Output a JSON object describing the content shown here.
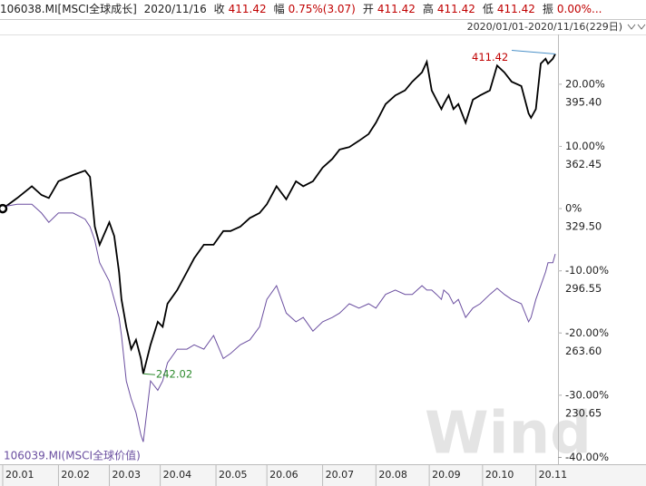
{
  "header": {
    "date": "2020/11/16",
    "fields": [
      {
        "label": "收",
        "value": "411.42"
      },
      {
        "label": "幅",
        "value": "0.75%(3.07)"
      },
      {
        "label": "开",
        "value": "411.42"
      },
      {
        "label": "高",
        "value": "411.42"
      },
      {
        "label": "低",
        "value": "411.42"
      },
      {
        "label": "振",
        "value": "0.00%..."
      }
    ],
    "range": "2020/01/01-2020/11/16(229日)"
  },
  "watermark": "Wind",
  "chart_data": {
    "type": "line",
    "x": [
      0,
      6,
      12,
      16,
      19,
      23,
      29,
      34,
      36,
      38,
      40,
      44,
      46,
      48,
      49,
      51,
      53,
      55,
      57,
      58,
      61,
      64,
      66,
      68,
      72,
      76,
      79,
      83,
      87,
      91,
      94,
      98,
      102,
      106,
      109,
      113,
      117,
      121,
      124,
      128,
      132,
      136,
      139,
      143,
      147,
      151,
      154,
      158,
      162,
      166,
      169,
      173,
      175,
      177,
      179,
      181,
      182,
      184,
      186,
      188,
      191,
      194,
      197,
      201,
      204,
      207,
      210,
      214,
      217,
      218,
      220,
      222,
      224,
      225,
      227,
      228
    ],
    "series": [
      {
        "name": "106038.MI[MSCI全球成长]",
        "color": "#000000",
        "values": [
          0,
          1.7,
          3.6,
          2.2,
          1.7,
          4.4,
          5.4,
          6.1,
          5.1,
          -2.9,
          -5.8,
          -2.2,
          -4.4,
          -10.2,
          -14.6,
          -19.0,
          -22.6,
          -21.1,
          -24.1,
          -26.55,
          -21.9,
          -18.2,
          -19.0,
          -15.3,
          -13.1,
          -10.2,
          -8.0,
          -5.8,
          -5.8,
          -3.6,
          -3.6,
          -2.9,
          -1.5,
          -0.7,
          0.7,
          3.6,
          1.5,
          4.4,
          3.6,
          4.4,
          6.6,
          8.0,
          9.5,
          9.9,
          10.9,
          12.0,
          13.8,
          16.8,
          18.2,
          19.0,
          20.4,
          21.9,
          23.6,
          19.0,
          17.5,
          16.0,
          16.8,
          18.2,
          16.0,
          16.8,
          13.8,
          17.5,
          18.2,
          19.0,
          23.0,
          21.9,
          20.4,
          19.7,
          15.3,
          14.6,
          16.0,
          23.3,
          24.1,
          23.3,
          24.1,
          24.86
        ]
      },
      {
        "name": "106039.MI(MSCI全球价值)",
        "color": "#6b4fa0",
        "values": [
          0.3,
          0.7,
          0.7,
          -0.7,
          -2.2,
          -0.7,
          -0.7,
          -1.7,
          -2.9,
          -5.1,
          -8.7,
          -11.7,
          -14.6,
          -17.5,
          -20.4,
          -27.7,
          -30.6,
          -32.8,
          -36.4,
          -37.5,
          -27.7,
          -29.2,
          -27.7,
          -24.8,
          -22.6,
          -22.6,
          -21.9,
          -22.6,
          -20.4,
          -24.1,
          -23.3,
          -21.9,
          -21.1,
          -19.0,
          -14.6,
          -12.4,
          -16.8,
          -18.2,
          -17.5,
          -19.7,
          -18.2,
          -17.5,
          -16.8,
          -15.3,
          -16.0,
          -15.3,
          -16.0,
          -13.8,
          -13.1,
          -13.8,
          -13.8,
          -12.4,
          -13.1,
          -13.1,
          -13.8,
          -14.6,
          -13.1,
          -13.8,
          -15.3,
          -14.6,
          -17.5,
          -16.0,
          -15.3,
          -13.8,
          -12.8,
          -13.8,
          -14.6,
          -15.3,
          -18.2,
          -17.5,
          -14.6,
          -12.4,
          -10.2,
          -8.7,
          -8.7,
          -7.3
        ]
      }
    ],
    "annotations": [
      {
        "text": "411.42",
        "x": 228,
        "y": 24.86,
        "color": "#c00000"
      },
      {
        "text": "242.02",
        "x": 58,
        "y": -26.55,
        "color": "#2e8b2e"
      }
    ],
    "xlim": [
      0,
      228
    ],
    "xticks": [
      {
        "value": 0,
        "label": "20.01"
      },
      {
        "value": 23,
        "label": "20.02"
      },
      {
        "value": 44,
        "label": "20.03"
      },
      {
        "value": 65,
        "label": "20.04"
      },
      {
        "value": 88,
        "label": "20.05"
      },
      {
        "value": 109,
        "label": "20.06"
      },
      {
        "value": 132,
        "label": "20.07"
      },
      {
        "value": 154,
        "label": "20.08"
      },
      {
        "value": 176,
        "label": "20.09"
      },
      {
        "value": 198,
        "label": "20.10"
      },
      {
        "value": 220,
        "label": "20.11"
      }
    ],
    "ylim": [
      -41.1,
      28
    ],
    "yticks": [
      {
        "value": 20,
        "label": "20.00%"
      },
      {
        "value": 10,
        "label": "10.00%"
      },
      {
        "value": 0,
        "label": "0%"
      },
      {
        "value": -10,
        "label": "-10.00%"
      },
      {
        "value": -20,
        "label": "-20.00%"
      },
      {
        "value": -30,
        "label": "-30.00%"
      },
      {
        "value": -40,
        "label": "-40.00%"
      }
    ],
    "y2lim": [
      194.07,
      421.76
    ],
    "y2ticks": [
      {
        "value": 395.4,
        "label": "395.40"
      },
      362.45,
      {
        "value": 329.5,
        "label": "329.50"
      },
      296.55,
      {
        "value": 263.6,
        "label": "263.60"
      },
      230.65
    ]
  }
}
